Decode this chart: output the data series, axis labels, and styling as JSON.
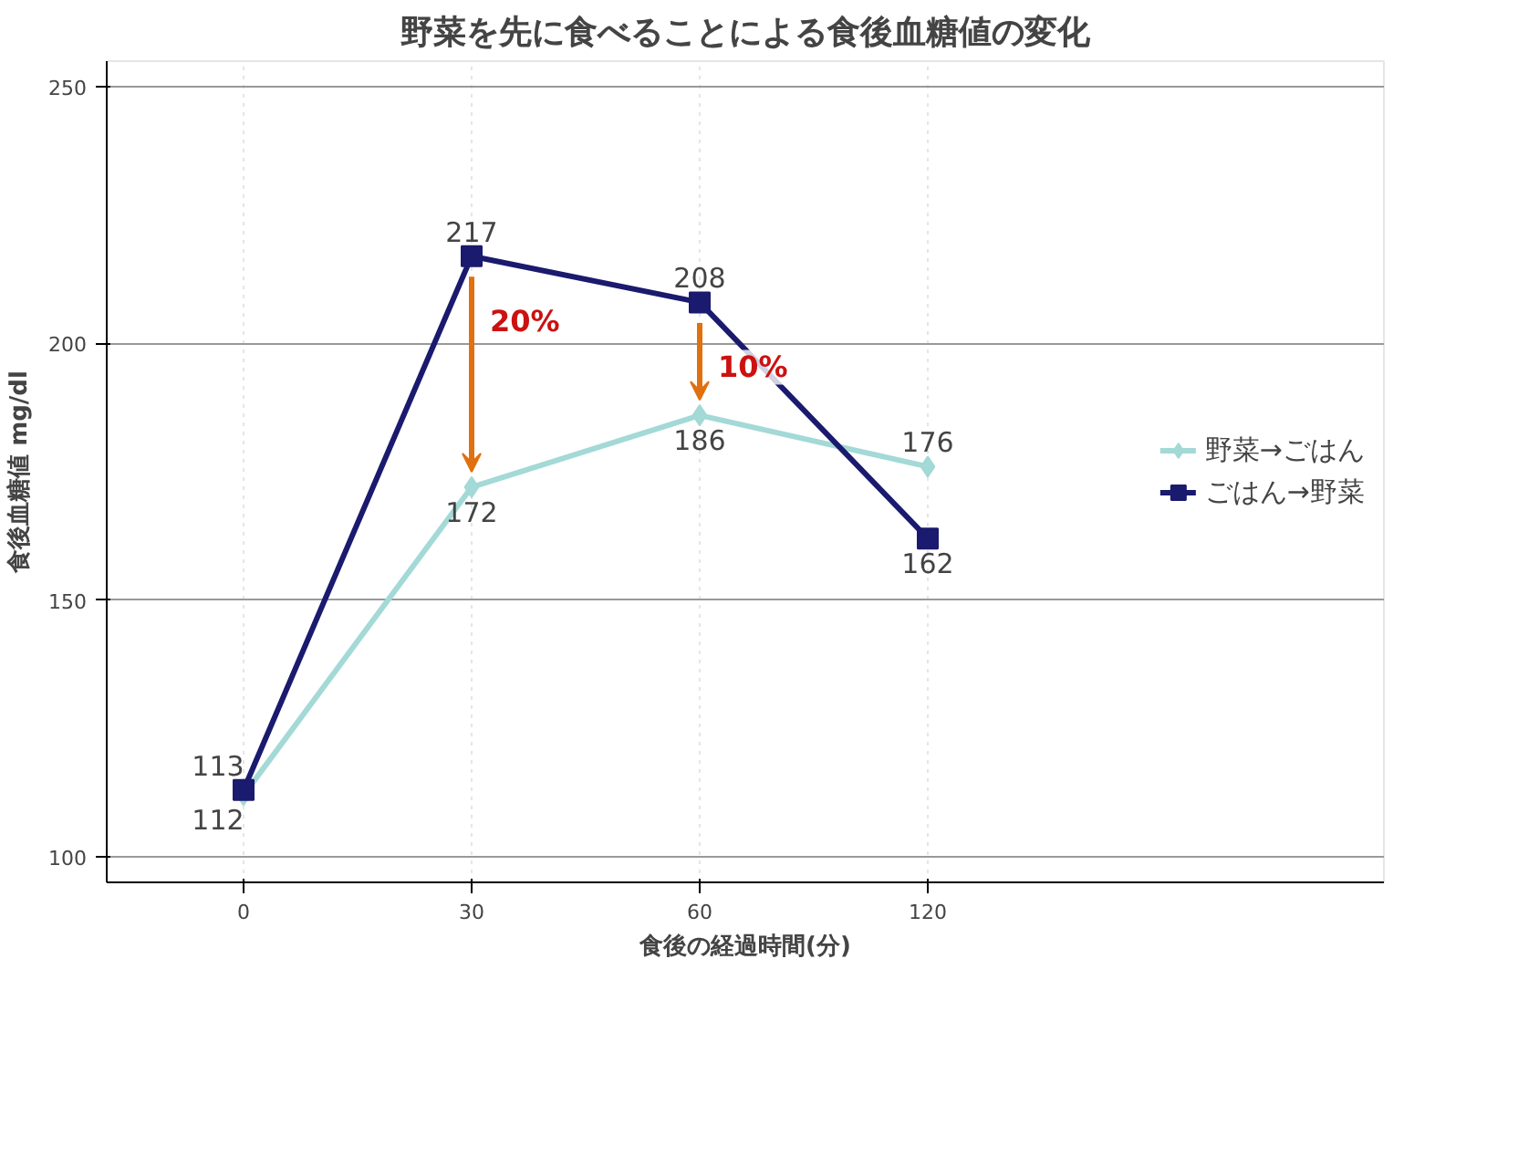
{
  "chart_data": {
    "type": "line",
    "title": "野菜を先に食べることによる食後血糖値の変化",
    "ylabel": "食後血糖値 mg/dl",
    "xlabel": "食後の経過時間(分)",
    "categories": [
      "0",
      "30",
      "60",
      "120"
    ],
    "series": [
      {
        "name": "野菜→ごはん",
        "color": "#a3d9d6",
        "values": [
          112,
          172,
          186,
          176
        ],
        "marker": "diamond"
      },
      {
        "name": "ごはん→野菜",
        "color": "#1a1a6e",
        "values": [
          113,
          217,
          208,
          162
        ],
        "marker": "square"
      }
    ],
    "ylim": [
      95,
      255
    ],
    "yticks": [
      100,
      150,
      200,
      250
    ],
    "annotations": [
      {
        "text": "20%",
        "x": "30",
        "y": 217
      },
      {
        "text": "10%",
        "x": "60",
        "y": 208
      }
    ],
    "data_labels": true,
    "grid": true,
    "legend": "right",
    "line_style": "solid"
  }
}
